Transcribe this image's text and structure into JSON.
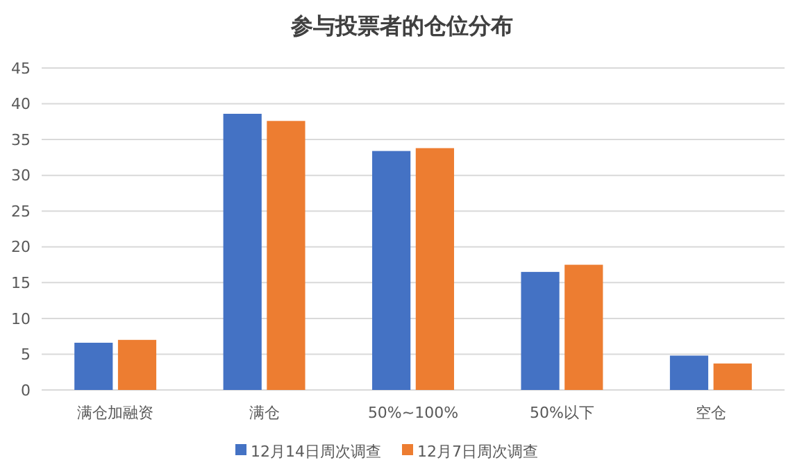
{
  "chart_data": {
    "type": "bar",
    "title": "参与投票者的仓位分布",
    "categories": [
      "满仓加融资",
      "满仓",
      "50%~100%",
      "50%以下",
      "空仓"
    ],
    "series": [
      {
        "name": "12月14日周次调查",
        "color": "#4472c4",
        "values": [
          6.6,
          38.6,
          33.4,
          16.5,
          4.8
        ]
      },
      {
        "name": "12月7日周次调查",
        "color": "#ed7d31",
        "values": [
          7.0,
          37.6,
          33.8,
          17.5,
          3.7
        ]
      }
    ],
    "ylim": [
      0,
      45
    ],
    "yticks": [
      0,
      5,
      10,
      15,
      20,
      25,
      30,
      35,
      40,
      45
    ],
    "grid": "y",
    "legend": "bottom"
  }
}
